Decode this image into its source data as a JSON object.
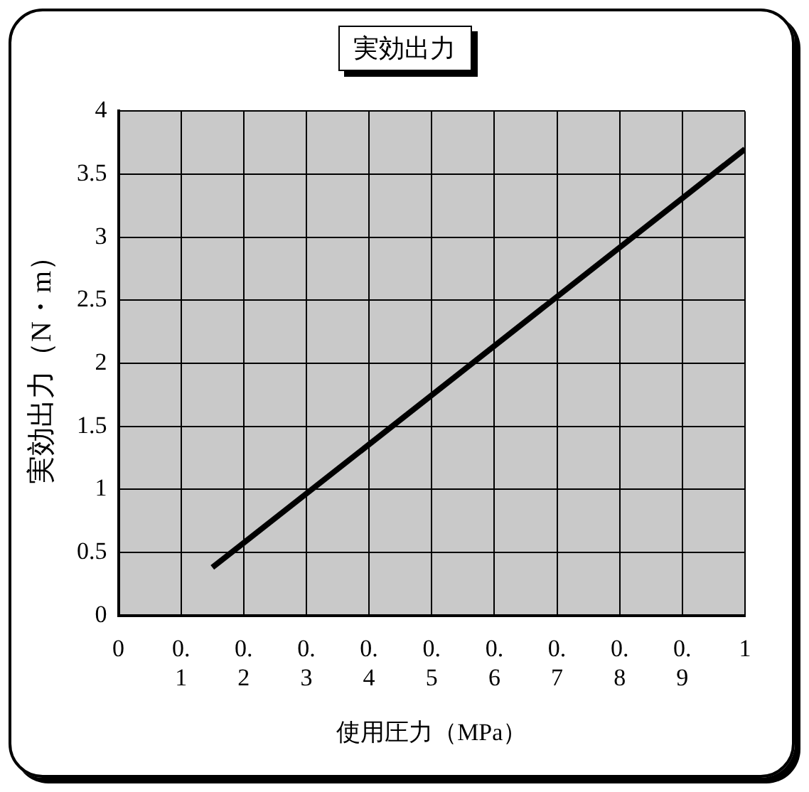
{
  "chart_data": {
    "type": "line",
    "title": "実効出力",
    "xlabel": "使用圧力（MPa）",
    "ylabel": "実効出力（N・m）",
    "x": [
      0.15,
      1
    ],
    "series": [
      {
        "color": "#000000",
        "values": [
          0.38,
          3.7
        ]
      }
    ],
    "xlim": [
      0,
      1
    ],
    "xticks": [
      0,
      0.1,
      0.2,
      0.3,
      0.4,
      0.5,
      0.6,
      0.7,
      0.8,
      0.9,
      1
    ],
    "ylim": [
      0,
      4
    ],
    "yticks": [
      0,
      0.5,
      1,
      1.5,
      2,
      2.5,
      3,
      3.5,
      4
    ],
    "grid": true,
    "legend": false,
    "marker": "none",
    "line_style": "solid"
  }
}
